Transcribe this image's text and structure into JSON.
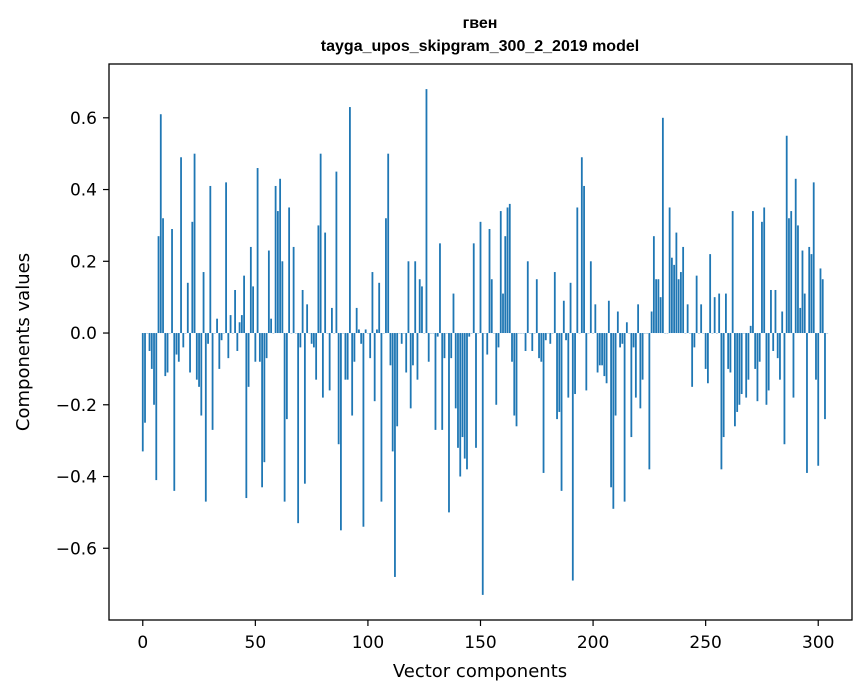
{
  "chart_data": {
    "type": "bar",
    "title": "гвен",
    "subtitle": "tayga_upos_skipgram_300_2_2019 model",
    "xlabel": "Vector components",
    "ylabel": "Components values",
    "xlim": [
      -15,
      315
    ],
    "ylim": [
      -0.8,
      0.75
    ],
    "xticks": [
      0,
      50,
      100,
      150,
      200,
      250,
      300
    ],
    "yticks": [
      -0.6,
      -0.4,
      -0.2,
      0.0,
      0.2,
      0.4,
      0.6
    ],
    "xtick_labels": [
      "0",
      "50",
      "100",
      "150",
      "200",
      "250",
      "300"
    ],
    "ytick_labels": [
      "−0.6",
      "−0.4",
      "−0.2",
      "0.0",
      "0.2",
      "0.4",
      "0.6"
    ],
    "grid": false,
    "bar_color": "#1f77b4",
    "values": [
      -0.33,
      -0.25,
      0.0,
      -0.05,
      -0.1,
      -0.2,
      -0.41,
      0.27,
      0.61,
      0.32,
      -0.12,
      -0.11,
      0.0,
      0.29,
      -0.44,
      -0.06,
      -0.08,
      0.49,
      -0.04,
      0.0,
      0.14,
      -0.11,
      0.31,
      0.5,
      -0.13,
      -0.15,
      -0.23,
      0.17,
      -0.47,
      -0.03,
      0.41,
      -0.27,
      0.0,
      0.04,
      -0.1,
      -0.02,
      0.0,
      0.42,
      -0.07,
      0.05,
      0.0,
      0.12,
      -0.05,
      0.03,
      0.05,
      0.16,
      -0.46,
      -0.15,
      0.24,
      0.13,
      -0.08,
      0.46,
      -0.08,
      -0.43,
      -0.36,
      -0.07,
      0.23,
      0.04,
      0.0,
      0.41,
      0.34,
      0.43,
      0.2,
      -0.47,
      -0.24,
      0.35,
      0.0,
      0.24,
      0.0,
      -0.53,
      -0.04,
      0.12,
      -0.42,
      0.08,
      0.0,
      -0.03,
      -0.04,
      -0.13,
      0.3,
      0.5,
      -0.18,
      0.28,
      0.0,
      -0.16,
      0.07,
      0.0,
      0.45,
      -0.31,
      -0.55,
      0.0,
      -0.13,
      -0.13,
      0.63,
      -0.23,
      -0.08,
      0.07,
      0.01,
      -0.03,
      -0.54,
      0.01,
      0.0,
      -0.07,
      0.17,
      -0.19,
      0.01,
      0.14,
      -0.47,
      0.0,
      0.32,
      0.5,
      -0.09,
      -0.33,
      -0.68,
      -0.26,
      0.0,
      -0.03,
      0.0,
      -0.11,
      0.2,
      -0.21,
      -0.09,
      0.2,
      -0.13,
      0.15,
      0.13,
      0.0,
      0.68,
      -0.08,
      0.0,
      0.0,
      -0.27,
      -0.01,
      0.25,
      -0.27,
      -0.07,
      0.0,
      -0.5,
      -0.07,
      0.11,
      -0.21,
      -0.32,
      -0.4,
      -0.29,
      -0.35,
      -0.38,
      -0.01,
      0.0,
      0.25,
      -0.32,
      0.0,
      0.31,
      -0.73,
      0.0,
      -0.06,
      0.29,
      0.15,
      0.0,
      -0.2,
      -0.04,
      0.34,
      0.11,
      0.27,
      0.35,
      0.36,
      -0.08,
      -0.23,
      -0.26,
      0.0,
      0.0,
      0.0,
      -0.05,
      0.2,
      0.0,
      -0.05,
      0.0,
      0.15,
      -0.07,
      -0.08,
      -0.39,
      -0.02,
      0.0,
      -0.03,
      0.0,
      0.17,
      -0.24,
      -0.22,
      -0.44,
      0.09,
      -0.02,
      -0.18,
      0.14,
      -0.69,
      -0.17,
      0.35,
      0.0,
      0.49,
      0.41,
      -0.16,
      0.0,
      0.2,
      0.0,
      0.08,
      -0.11,
      -0.09,
      -0.09,
      -0.12,
      -0.14,
      0.09,
      -0.43,
      -0.49,
      -0.23,
      0.06,
      -0.04,
      -0.03,
      -0.47,
      0.03,
      0.0,
      -0.29,
      -0.04,
      -0.18,
      0.08,
      -0.21,
      -0.13,
      0.0,
      0.0,
      -0.38,
      0.06,
      0.27,
      0.15,
      0.15,
      0.1,
      0.6,
      0.0,
      0.0,
      0.35,
      0.21,
      0.19,
      0.28,
      0.15,
      0.17,
      0.24,
      0.0,
      0.08,
      0.0,
      -0.15,
      -0.04,
      0.16,
      0.0,
      0.08,
      0.0,
      -0.1,
      -0.14,
      0.22,
      0.0,
      0.1,
      0.0,
      0.11,
      -0.38,
      -0.29,
      0.11,
      -0.1,
      -0.11,
      0.34,
      -0.26,
      -0.22,
      -0.2,
      -0.17,
      0.0,
      -0.18,
      -0.13,
      0.02,
      0.34,
      -0.1,
      -0.19,
      -0.08,
      0.31,
      0.35,
      -0.2,
      -0.16,
      0.12,
      -0.05,
      0.12,
      -0.07,
      -0.13,
      0.06,
      -0.31,
      0.55,
      0.32,
      0.34,
      -0.18,
      0.43,
      0.3,
      0.07,
      0.23,
      0.11,
      -0.39,
      0.24,
      0.22,
      0.42,
      -0.13,
      -0.37,
      0.18,
      0.15,
      -0.24,
      0.0
    ]
  }
}
